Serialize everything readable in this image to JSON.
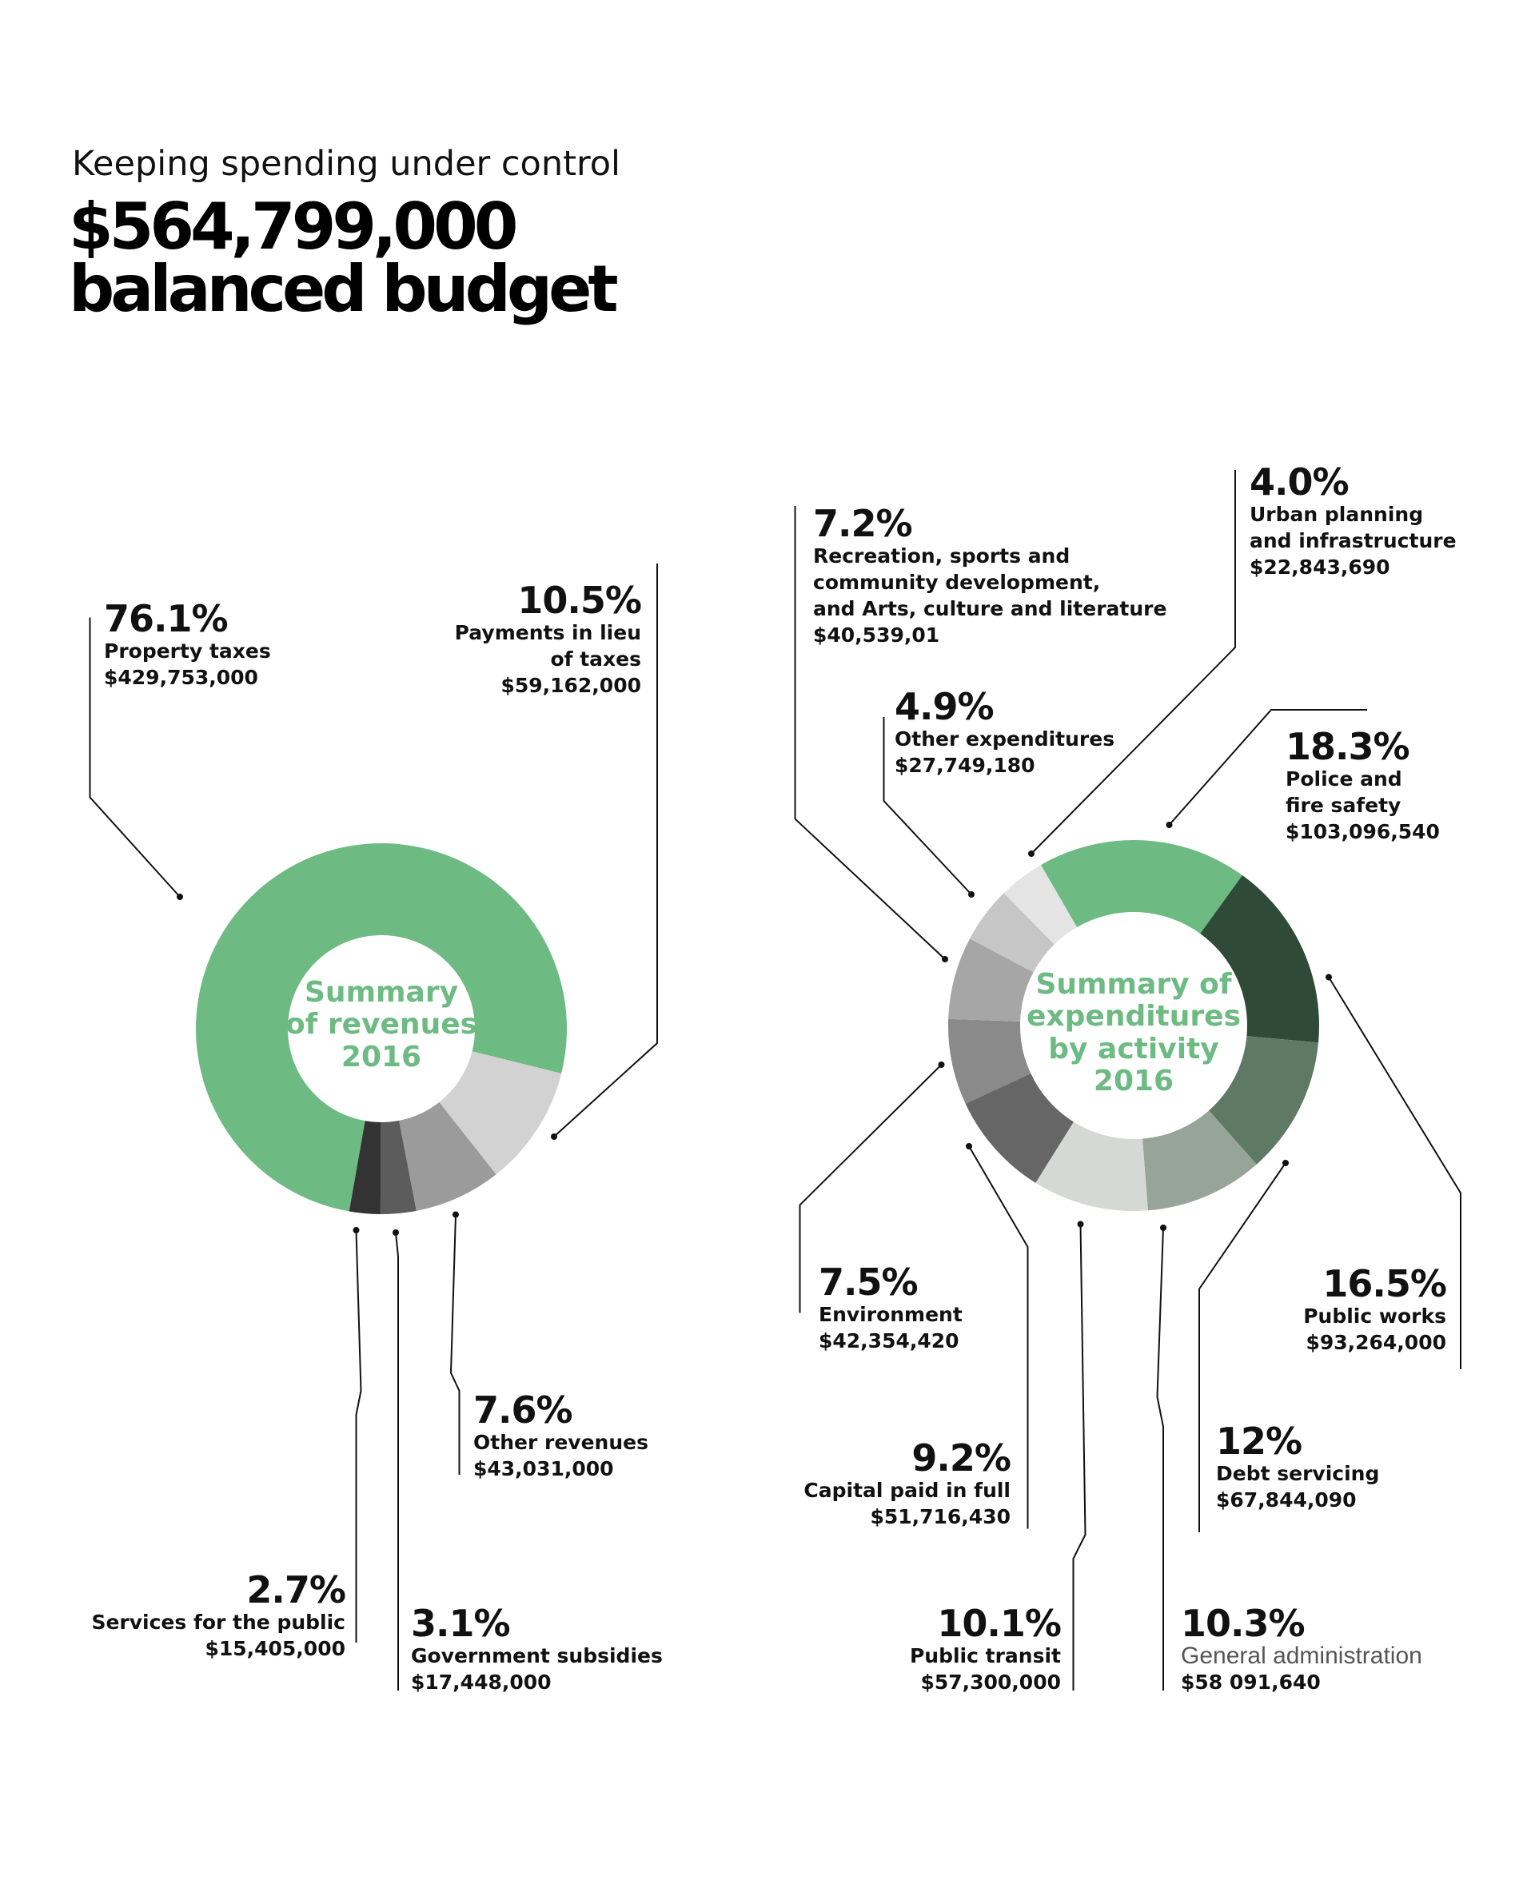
{
  "header": {
    "kicker": "Keeping spending under control",
    "headline": "$564,799,000\nbalanced budget"
  },
  "chart_data": [
    {
      "type": "pie",
      "title": "Summary\nof revenues\n2016",
      "categories": [
        "Property taxes",
        "Payments in lieu\nof taxes",
        "Other revenues",
        "Government subsidies",
        "Services for the public"
      ],
      "values": [
        76.1,
        10.5,
        7.6,
        3.1,
        2.7
      ],
      "value_labels": [
        "76.1%",
        "10.5%",
        "7.6%",
        "3.1%",
        "2.7%"
      ],
      "amount_labels": [
        "$429,753,000",
        "$59,162,000",
        "$43,031,000",
        "$17,448,000",
        "$15,405,000"
      ],
      "colors": [
        "#6dbb82",
        "#d2d2d2",
        "#9b9b9b",
        "#5c5c5c",
        "#333333"
      ]
    },
    {
      "type": "pie",
      "title": "Summary of\nexpenditures\nby activity\n2016",
      "categories": [
        "Police and\nfire safety",
        "Public works",
        "Debt servicing",
        "General administration",
        "Public transit",
        "Capital paid in full",
        "Environment",
        "Recreation, sports and\ncommunity development,\nand Arts, culture and literature",
        "Other expenditures",
        "Urban planning\nand infrastructure"
      ],
      "values": [
        18.3,
        16.5,
        12,
        10.3,
        10.1,
        9.2,
        7.5,
        7.2,
        4.9,
        4.0
      ],
      "value_labels": [
        "18.3%",
        "16.5%",
        "12%",
        "10.3%",
        "10.1%",
        "9.2%",
        "7.5%",
        "7.2%",
        "4.9%",
        "4.0%"
      ],
      "amount_labels": [
        "$103,096,540",
        "$93,264,000",
        "$67,844,090",
        "$58 091,640",
        "$57,300,000",
        "$51,716,430",
        "$42,354,420",
        "$40,539,01",
        "$27,749,180",
        "$22,843,690"
      ],
      "colors": [
        "#6dbb82",
        "#2f4a36",
        "#5e7a65",
        "#96a597",
        "#d5d9d5",
        "#666666",
        "#8a8a8a",
        "#a6a6a6",
        "#c6c6c6",
        "#e4e4e4"
      ]
    }
  ]
}
